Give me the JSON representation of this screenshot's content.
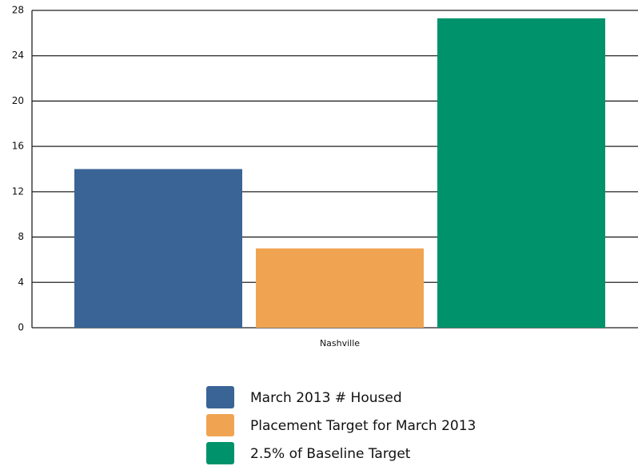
{
  "chart_data": {
    "type": "bar",
    "categories": [
      "Nashville"
    ],
    "series": [
      {
        "name": "March 2013 # Housed",
        "color": "#3a6496",
        "values": [
          14
        ]
      },
      {
        "name": "Placement Target for March 2013",
        "color": "#f0a452",
        "values": [
          7
        ]
      },
      {
        "name": "2.5% of Baseline Target",
        "color": "#00936b",
        "values": [
          27.3
        ]
      }
    ],
    "ylim": [
      0,
      28
    ],
    "yticks": [
      0,
      4,
      8,
      12,
      16,
      20,
      24,
      28
    ],
    "grid": true,
    "legend": "bottom"
  }
}
